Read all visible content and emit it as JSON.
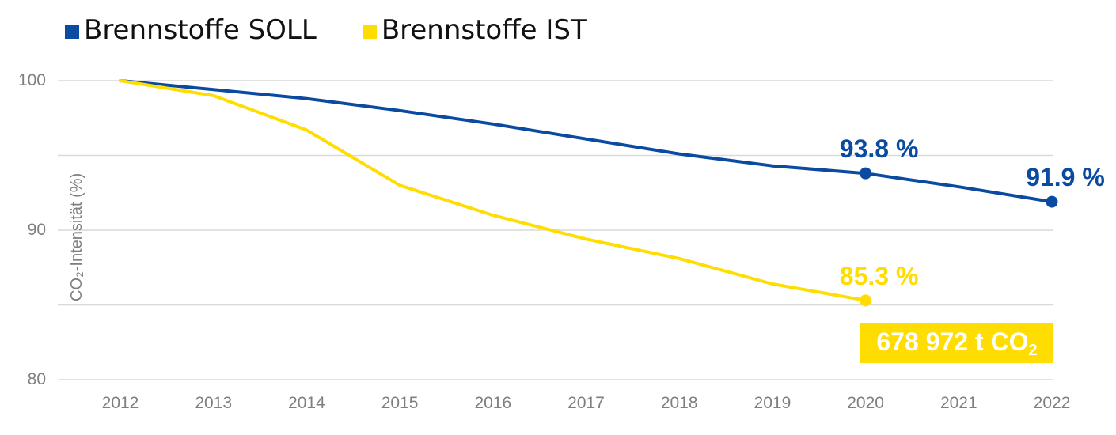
{
  "chart_data": {
    "type": "line",
    "x": [
      "2012",
      "2013",
      "2014",
      "2015",
      "2016",
      "2017",
      "2018",
      "2019",
      "2020",
      "2021",
      "2022"
    ],
    "series": [
      {
        "name": "Brennstoffe SOLL",
        "color": "#0a4aa0",
        "values": [
          100,
          99.4,
          98.8,
          98.0,
          97.1,
          96.1,
          95.1,
          94.3,
          93.8,
          92.9,
          91.9
        ]
      },
      {
        "name": "Brennstoffe IST",
        "color": "#ffdd00",
        "values": [
          100,
          99.0,
          96.7,
          93.0,
          91.0,
          89.4,
          88.1,
          86.4,
          85.3,
          null,
          null
        ]
      }
    ],
    "ylabel": "CO₂-Intensität (%)",
    "ylim": [
      80,
      100
    ],
    "yticks": [
      100,
      90,
      80
    ],
    "grid": true,
    "legend": "top-left",
    "annotations": [
      {
        "label": "93.8 %",
        "x": "2020",
        "y": 93.8,
        "color": "#0a4aa0"
      },
      {
        "label": "91.9 %",
        "x": "2022",
        "y": 91.9,
        "color": "#0a4aa0"
      },
      {
        "label": "85.3 %",
        "x": "2020",
        "y": 85.3,
        "color": "#ffdd00"
      }
    ],
    "callout": {
      "text": "678 972 t CO",
      "subscript": "2",
      "color": "#ffdd00"
    }
  }
}
